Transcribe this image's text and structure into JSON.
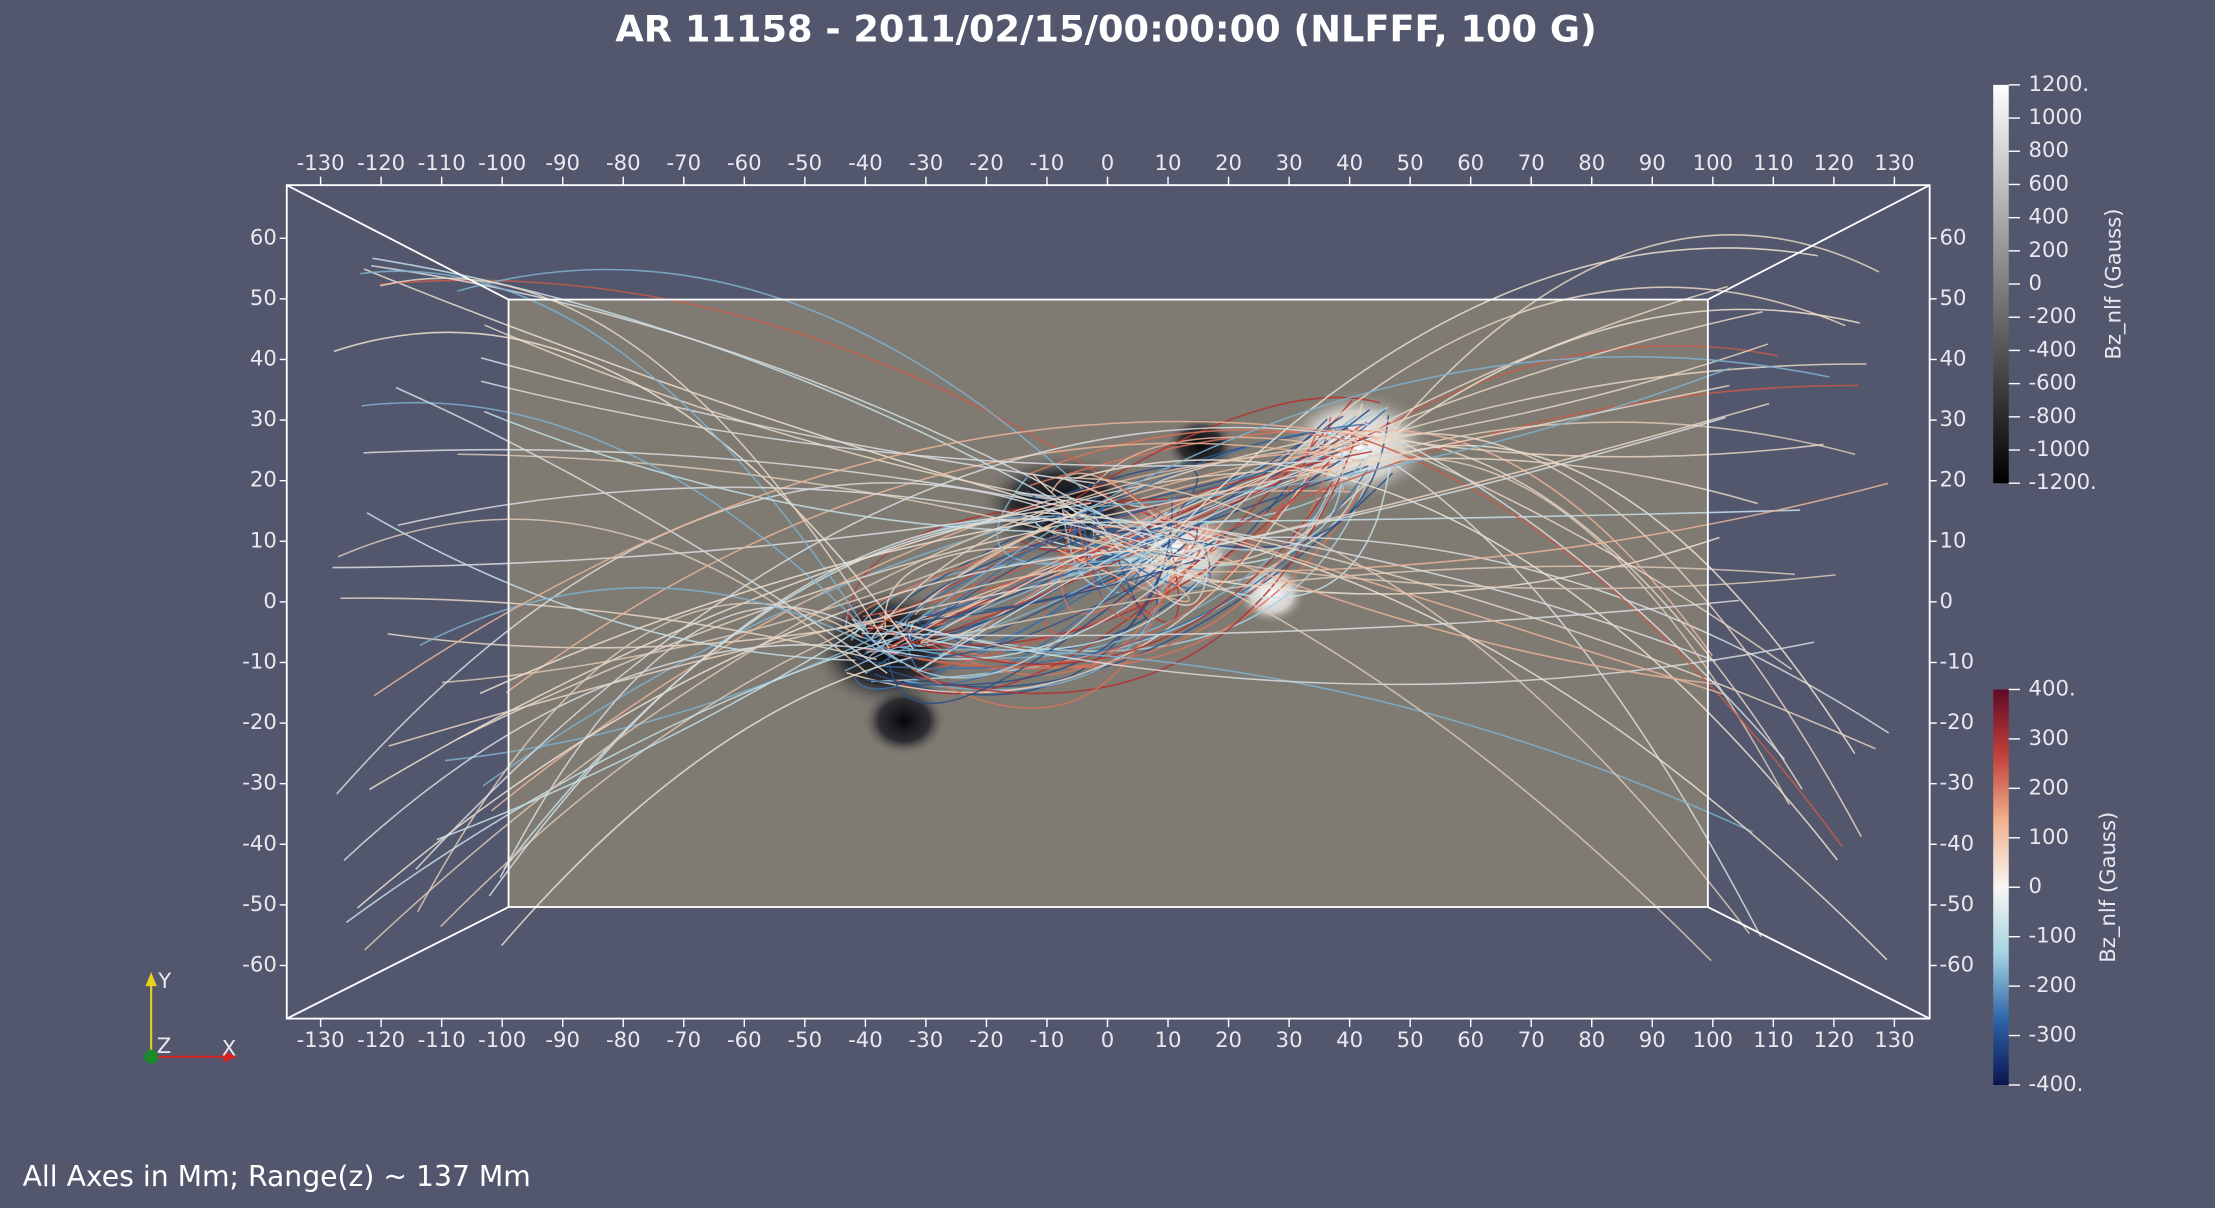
{
  "title": "AR 11158 - 2011/02/15/00:00:00 (NLFFF, 100 G)",
  "axes": {
    "xticks": [
      -130,
      -120,
      -110,
      -100,
      -90,
      -80,
      -70,
      -60,
      -50,
      -40,
      -30,
      -20,
      -10,
      0,
      10,
      20,
      30,
      40,
      50,
      60,
      70,
      80,
      90,
      100,
      110,
      120,
      130
    ],
    "yticks": [
      60,
      50,
      40,
      30,
      20,
      10,
      0,
      -10,
      -20,
      -30,
      -40,
      -50,
      -60
    ]
  },
  "colorbars": [
    {
      "title": "Bz_nlf (Gauss)",
      "range": [
        -1200,
        1200
      ],
      "colors": [
        "#000000",
        "#ffffff"
      ],
      "ticks": [
        {
          "value": 1200,
          "label": "1200."
        },
        1000,
        800,
        600,
        400,
        200,
        0,
        -200,
        -400,
        -600,
        -800,
        -1000,
        {
          "value": -1200,
          "label": "-1200."
        }
      ]
    },
    {
      "title": "Bz_nlf (Gauss)",
      "range": [
        -400,
        400
      ],
      "colors": [
        "#0b1550",
        "#2f65a8",
        "#a6d3e3",
        "#f8f6f3",
        "#f1b28f",
        "#c2403a",
        "#5e0a27"
      ],
      "ticks": [
        {
          "value": 400,
          "label": "400."
        },
        300,
        200,
        100,
        0,
        -100,
        -200,
        -300,
        {
          "value": -400,
          "label": "-400."
        }
      ]
    }
  ],
  "orientation": {
    "y": "Y",
    "z": "Z",
    "x": "X"
  },
  "footnote": "All Axes in Mm; Range(z) ~ 137 Mm"
}
